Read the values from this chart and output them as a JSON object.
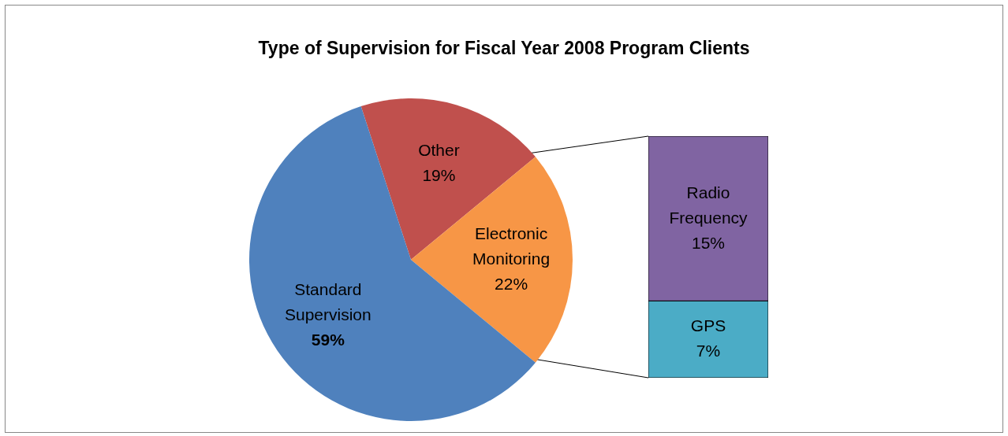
{
  "chart_data": [
    {
      "type": "pie",
      "title": "Type of Supervision for Fiscal Year 2008 Program Clients",
      "categories": [
        "Other",
        "Electronic Monitoring",
        "Standard Supervision"
      ],
      "values": [
        19,
        22,
        59
      ],
      "value_labels": [
        "19%",
        "22%",
        "59%"
      ],
      "colors": [
        "#c0504d",
        "#f79646",
        "#4f81bd"
      ]
    },
    {
      "type": "bar",
      "stacked": true,
      "categories": [
        null
      ],
      "series": [
        {
          "name": "GPS",
          "color": "#4bacc6",
          "values": [
            7
          ],
          "value_labels": [
            "7%"
          ]
        },
        {
          "name": "Radio Frequency",
          "color": "#8064a2",
          "values": [
            15
          ],
          "value_labels": [
            "15%"
          ]
        }
      ]
    }
  ]
}
